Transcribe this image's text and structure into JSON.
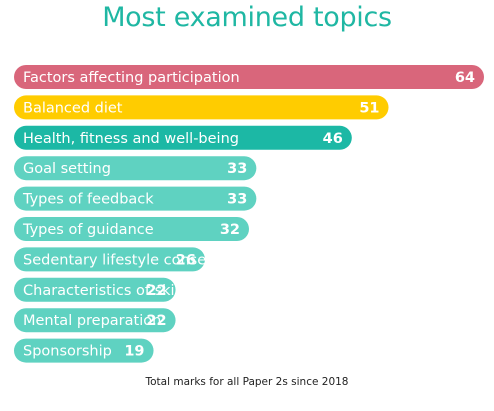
{
  "chart_data": {
    "type": "bar",
    "orientation": "horizontal",
    "title": "Most examined topics",
    "footnote": "Total marks for all Paper 2s since 2018",
    "categories": [
      "Factors affecting participation",
      "Balanced diet",
      "Health, fitness and well-being",
      "Goal setting",
      "Types of feedback",
      "Types of guidance",
      "Sedentary lifestyle consequences",
      "Characteristics of skill",
      "Mental preparation",
      "Sponsorship"
    ],
    "values": [
      64,
      51,
      46,
      33,
      33,
      32,
      26,
      22,
      22,
      19
    ],
    "colors": [
      "#d9667b",
      "#ffcc00",
      "#1cb8a5",
      "#5fd2c1",
      "#5fd2c1",
      "#5fd2c1",
      "#5fd2c1",
      "#5fd2c1",
      "#5fd2c1",
      "#5fd2c1"
    ],
    "value_labels_shown": true,
    "axes_shown": false,
    "grid": false
  }
}
